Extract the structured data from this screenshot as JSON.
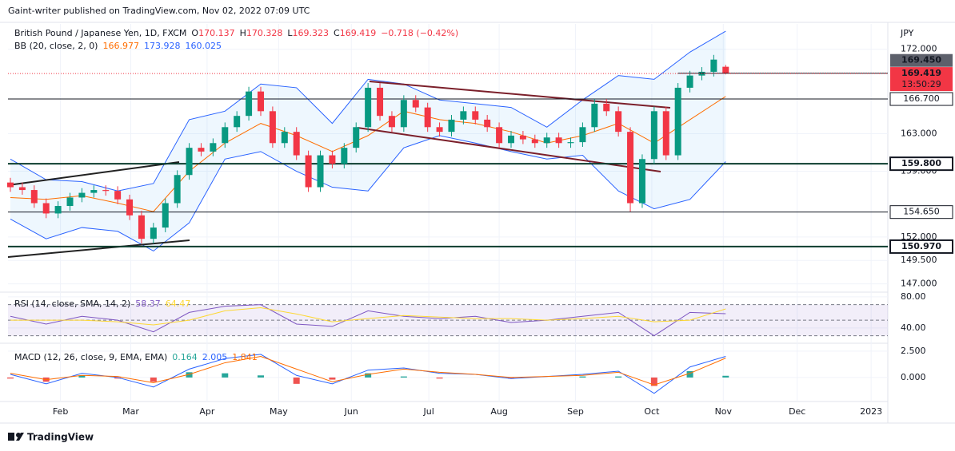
{
  "header": {
    "published": "Gaint-writer published on TradingView.com, Nov 02, 2022 07:09 UTC",
    "footer": "TradingView"
  },
  "chart_data": {
    "type": "candlestick",
    "title": "British Pound / Japanese Yen, 1D, FXCM",
    "ohlc_prefixes": [
      "O",
      "H",
      "L",
      "C"
    ],
    "change_label": "−0.718 (−0.42%)",
    "currency": "JPY",
    "up_color": "#089981",
    "down_color": "#f23645",
    "x": [
      0,
      1,
      2,
      3,
      4,
      5,
      6,
      7,
      8,
      9,
      10,
      11,
      12,
      13,
      14,
      15,
      16,
      17,
      18,
      19,
      20,
      21,
      22,
      23,
      24,
      25,
      26,
      27,
      28,
      29,
      30,
      31,
      32,
      33,
      34,
      35,
      36,
      37,
      38,
      39,
      40,
      41,
      42,
      43,
      44,
      45,
      46,
      47,
      48,
      49,
      50,
      51,
      52,
      53,
      54,
      55,
      56,
      57,
      58,
      59,
      60
    ],
    "open": [
      157.8,
      157.3,
      157.0,
      155.6,
      154.5,
      155.3,
      156.2,
      156.7,
      157.0,
      156.9,
      156.0,
      154.3,
      151.8,
      153.0,
      155.6,
      158.6,
      161.5,
      161.1,
      162.0,
      163.7,
      164.9,
      167.5,
      165.4,
      162.0,
      163.2,
      160.7,
      157.3,
      160.7,
      159.8,
      161.5,
      163.7,
      167.9,
      164.9,
      163.7,
      166.6,
      165.8,
      163.7,
      163.2,
      164.5,
      165.4,
      164.5,
      163.7,
      162.0,
      162.8,
      162.4,
      162.0,
      162.6,
      162.0,
      162.1,
      163.7,
      166.2,
      165.4,
      163.2,
      155.6,
      160.3,
      165.4,
      160.7,
      167.9,
      169.2,
      169.6,
      170.137
    ],
    "high": [
      158.3,
      157.8,
      157.5,
      156.1,
      155.8,
      156.7,
      157.2,
      157.5,
      157.5,
      157.4,
      156.5,
      154.8,
      153.5,
      156.1,
      159.1,
      162.0,
      162.0,
      162.5,
      164.2,
      165.4,
      168.0,
      168.0,
      165.9,
      163.7,
      163.7,
      161.2,
      161.2,
      161.2,
      162.0,
      164.2,
      168.4,
      168.4,
      165.4,
      167.1,
      167.1,
      166.3,
      164.2,
      165.0,
      165.9,
      165.9,
      165.0,
      164.2,
      163.3,
      163.3,
      162.9,
      163.1,
      163.1,
      162.6,
      164.2,
      166.7,
      166.7,
      165.9,
      163.7,
      160.8,
      165.9,
      165.9,
      168.4,
      169.7,
      170.1,
      171.4,
      170.328
    ],
    "low": [
      156.8,
      156.5,
      155.1,
      154.0,
      154.0,
      154.8,
      155.7,
      156.2,
      156.4,
      155.5,
      153.8,
      151.3,
      151.3,
      152.5,
      155.1,
      158.1,
      160.6,
      160.6,
      161.5,
      163.2,
      164.4,
      164.9,
      161.5,
      161.5,
      160.2,
      156.8,
      156.8,
      159.3,
      159.3,
      161.0,
      163.2,
      164.4,
      163.2,
      163.2,
      165.3,
      163.2,
      162.7,
      162.7,
      164.0,
      164.0,
      163.2,
      161.5,
      161.5,
      161.9,
      161.5,
      161.5,
      161.5,
      161.5,
      161.6,
      163.2,
      164.9,
      162.7,
      154.7,
      155.1,
      159.8,
      160.2,
      160.2,
      167.4,
      168.7,
      169.1,
      169.323
    ],
    "close": [
      157.3,
      157.0,
      155.6,
      154.5,
      155.3,
      156.2,
      156.7,
      157.0,
      156.9,
      156.0,
      154.3,
      151.8,
      153.0,
      155.6,
      158.6,
      161.5,
      161.1,
      162.0,
      163.7,
      164.9,
      167.5,
      165.4,
      162.0,
      163.2,
      160.7,
      157.3,
      160.7,
      159.8,
      161.5,
      163.7,
      167.9,
      164.9,
      163.7,
      166.6,
      165.8,
      163.7,
      163.2,
      164.5,
      165.4,
      164.5,
      163.7,
      162.0,
      162.8,
      162.4,
      162.0,
      162.6,
      162.0,
      162.1,
      163.7,
      166.2,
      165.4,
      163.2,
      155.6,
      160.3,
      165.4,
      160.7,
      167.9,
      169.2,
      169.6,
      170.9,
      169.419
    ],
    "xlim": [
      -0.2,
      73.6
    ],
    "xticks": [
      {
        "value": 4.2,
        "label": "Feb"
      },
      {
        "value": 10.1,
        "label": "Mar"
      },
      {
        "value": 16.5,
        "label": "Apr"
      },
      {
        "value": 22.5,
        "label": "May"
      },
      {
        "value": 28.6,
        "label": "Jun"
      },
      {
        "value": 35.1,
        "label": "Jul"
      },
      {
        "value": 41.0,
        "label": "Aug"
      },
      {
        "value": 47.4,
        "label": "Sep"
      },
      {
        "value": 53.8,
        "label": "Oct"
      },
      {
        "value": 59.8,
        "label": "Nov"
      },
      {
        "value": 66.0,
        "label": "Dec"
      },
      {
        "value": 72.2,
        "label": "2023"
      }
    ],
    "ylim": [
      146.2,
      174.7
    ],
    "yticks": [
      {
        "value": 172,
        "label": "172.000"
      },
      {
        "value": 163,
        "label": "163.000"
      },
      {
        "value": 159,
        "label": "159.000"
      },
      {
        "value": 152,
        "label": "152.000"
      },
      {
        "value": 149.5,
        "label": "149.500"
      },
      {
        "value": 147,
        "label": "147.000"
      }
    ],
    "grid": true,
    "bollinger": {
      "label": "BB (20, close, 2, 0)",
      "fill": "rgba(33,150,243,0.08)",
      "x": [
        0,
        3,
        6,
        9,
        12,
        15,
        18,
        21,
        24,
        27,
        30,
        33,
        36,
        39,
        42,
        45,
        48,
        51,
        54,
        57,
        60
      ],
      "lines": [
        {
          "color": "#ff6d00",
          "values": [
            156.2,
            156.0,
            156.4,
            155.6,
            154.7,
            159.0,
            162.0,
            164.1,
            162.8,
            161.1,
            162.8,
            165.4,
            164.5,
            164.1,
            163.2,
            162.0,
            162.8,
            164.1,
            162.0,
            164.5,
            166.977
          ]
        },
        {
          "color": "#2962ff",
          "values": [
            160.3,
            158.1,
            157.9,
            156.9,
            157.7,
            164.5,
            165.4,
            168.3,
            167.9,
            164.1,
            168.8,
            168.3,
            166.6,
            166.2,
            165.8,
            163.7,
            166.6,
            169.2,
            168.8,
            171.7,
            173.928
          ]
        },
        {
          "color": "#2962ff",
          "values": [
            153.9,
            151.8,
            153.0,
            152.6,
            150.5,
            153.5,
            160.3,
            161.1,
            159.0,
            157.3,
            156.9,
            161.5,
            162.8,
            162.0,
            161.1,
            160.3,
            160.7,
            156.9,
            155.0,
            156.0,
            160.025
          ]
        }
      ]
    },
    "levels": [
      {
        "value": 166.7,
        "label": "166.700",
        "bold": false
      },
      {
        "value": 159.8,
        "label": "159.800",
        "bold": true
      },
      {
        "value": 154.65,
        "label": "154.650",
        "bold": false
      },
      {
        "value": 150.97,
        "label": "150.970",
        "bold": true
      }
    ],
    "last_price": {
      "value": 169.45,
      "label": "169.450",
      "color": "#5d606b"
    },
    "current_price": {
      "value": 169.419,
      "label": "169.419",
      "countdown": "13:50:29",
      "color": "#f23645"
    },
    "rsi": {
      "label": "RSI (14, close, SMA, 14, 2)",
      "x": [
        0,
        3,
        6,
        9,
        12,
        15,
        18,
        21,
        24,
        27,
        30,
        33,
        36,
        39,
        42,
        45,
        48,
        51,
        54,
        57,
        60
      ],
      "lines": [
        {
          "color": "#7e57c2",
          "values": [
            55,
            45,
            55,
            50,
            35,
            60,
            68,
            70,
            45,
            42,
            62,
            55,
            52,
            55,
            47,
            50,
            55,
            60,
            30,
            60,
            58.37
          ]
        },
        {
          "color": "#fdd835",
          "values": [
            50,
            50,
            50,
            48,
            44,
            50,
            62,
            66,
            58,
            48,
            52,
            56,
            54,
            52,
            52,
            50,
            52,
            55,
            48,
            50,
            64.47
          ]
        }
      ],
      "bands": [
        70,
        50,
        30
      ],
      "ylim": [
        22.4,
        84
      ],
      "yticks": [
        {
          "value": 80,
          "label": "80.00"
        },
        {
          "value": 40,
          "label": "40.00"
        }
      ]
    },
    "macd": {
      "label": "MACD (12, 26, close, 9, EMA, EMA)",
      "x": [
        0,
        3,
        6,
        9,
        12,
        15,
        18,
        21,
        24,
        27,
        30,
        33,
        36,
        39,
        42,
        45,
        48,
        51,
        54,
        57,
        60
      ],
      "histogram": [
        -0.1,
        -0.4,
        0.2,
        -0.1,
        -0.4,
        0.5,
        0.4,
        0.2,
        -0.6,
        -0.2,
        0.4,
        0.1,
        -0.1,
        0,
        -0.1,
        0,
        0.1,
        0.1,
        -0.8,
        0.6,
        0.164
      ],
      "hist_colors": [
        "#26a69a",
        "#ef5350"
      ],
      "lines": [
        {
          "color": "#2962ff",
          "values": [
            0.3,
            -0.6,
            0.4,
            0,
            -0.9,
            0.8,
            1.8,
            2.2,
            0.2,
            -0.6,
            0.7,
            0.9,
            0.4,
            0.3,
            -0.1,
            0.1,
            0.3,
            0.6,
            -1.5,
            1.0,
            2.005
          ]
        },
        {
          "color": "#ff6d00",
          "values": [
            0.4,
            -0.2,
            0.2,
            0.1,
            -0.5,
            0.3,
            1.4,
            2.0,
            0.8,
            -0.4,
            0.3,
            0.8,
            0.5,
            0.3,
            0.0,
            0.1,
            0.2,
            0.5,
            -0.7,
            0.4,
            1.841
          ]
        }
      ],
      "ylim": [
        -2.05,
        3.1
      ],
      "yticks": [
        {
          "value": 2.5,
          "label": "2.500"
        },
        {
          "value": 0,
          "label": "0.000"
        }
      ]
    }
  }
}
